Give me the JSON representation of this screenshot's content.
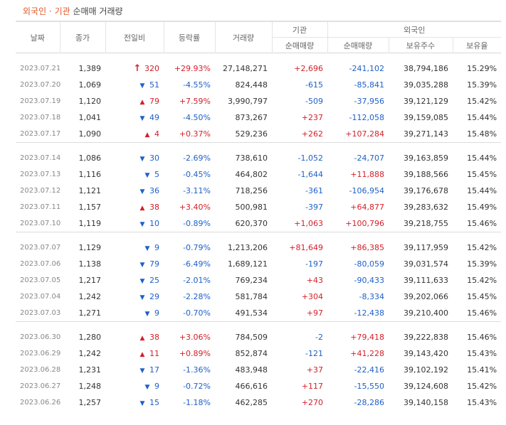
{
  "title": {
    "highlight": "외국인 · 기관",
    "rest": " 순매매 거래량"
  },
  "headers": {
    "date": "날짜",
    "close": "종가",
    "change": "전일비",
    "rate": "등락률",
    "volume": "거래량",
    "inst_group": "기관",
    "inst_net": "순매매량",
    "foreign_group": "외국인",
    "foreign_net": "순매매량",
    "foreign_holdings": "보유주수",
    "foreign_ratio": "보유율"
  },
  "colors": {
    "up": "#d3202a",
    "down": "#1e60c8",
    "accent": "#e05a2b"
  },
  "groups": [
    {
      "rows": [
        {
          "date": "2023.07.21",
          "close": "1,389",
          "dir": "limit",
          "change": "320",
          "rate": "+29.93%",
          "volume": "27,148,271",
          "inst": "+2,696",
          "foreign": "-241,102",
          "holdings": "38,794,186",
          "ratio": "15.29%"
        },
        {
          "date": "2023.07.20",
          "close": "1,069",
          "dir": "down",
          "change": "51",
          "rate": "-4.55%",
          "volume": "824,448",
          "inst": "-615",
          "foreign": "-85,841",
          "holdings": "39,035,288",
          "ratio": "15.39%"
        },
        {
          "date": "2023.07.19",
          "close": "1,120",
          "dir": "up",
          "change": "79",
          "rate": "+7.59%",
          "volume": "3,990,797",
          "inst": "-509",
          "foreign": "-37,956",
          "holdings": "39,121,129",
          "ratio": "15.42%"
        },
        {
          "date": "2023.07.18",
          "close": "1,041",
          "dir": "down",
          "change": "49",
          "rate": "-4.50%",
          "volume": "873,267",
          "inst": "+237",
          "foreign": "-112,058",
          "holdings": "39,159,085",
          "ratio": "15.44%"
        },
        {
          "date": "2023.07.17",
          "close": "1,090",
          "dir": "up",
          "change": "4",
          "rate": "+0.37%",
          "volume": "529,236",
          "inst": "+262",
          "foreign": "+107,284",
          "holdings": "39,271,143",
          "ratio": "15.48%"
        }
      ]
    },
    {
      "rows": [
        {
          "date": "2023.07.14",
          "close": "1,086",
          "dir": "down",
          "change": "30",
          "rate": "-2.69%",
          "volume": "738,610",
          "inst": "-1,052",
          "foreign": "-24,707",
          "holdings": "39,163,859",
          "ratio": "15.44%"
        },
        {
          "date": "2023.07.13",
          "close": "1,116",
          "dir": "down",
          "change": "5",
          "rate": "-0.45%",
          "volume": "464,802",
          "inst": "-1,644",
          "foreign": "+11,888",
          "holdings": "39,188,566",
          "ratio": "15.45%"
        },
        {
          "date": "2023.07.12",
          "close": "1,121",
          "dir": "down",
          "change": "36",
          "rate": "-3.11%",
          "volume": "718,256",
          "inst": "-361",
          "foreign": "-106,954",
          "holdings": "39,176,678",
          "ratio": "15.44%"
        },
        {
          "date": "2023.07.11",
          "close": "1,157",
          "dir": "up",
          "change": "38",
          "rate": "+3.40%",
          "volume": "500,981",
          "inst": "-397",
          "foreign": "+64,877",
          "holdings": "39,283,632",
          "ratio": "15.49%"
        },
        {
          "date": "2023.07.10",
          "close": "1,119",
          "dir": "down",
          "change": "10",
          "rate": "-0.89%",
          "volume": "620,370",
          "inst": "+1,063",
          "foreign": "+100,796",
          "holdings": "39,218,755",
          "ratio": "15.46%"
        }
      ]
    },
    {
      "rows": [
        {
          "date": "2023.07.07",
          "close": "1,129",
          "dir": "down",
          "change": "9",
          "rate": "-0.79%",
          "volume": "1,213,206",
          "inst": "+81,649",
          "foreign": "+86,385",
          "holdings": "39,117,959",
          "ratio": "15.42%"
        },
        {
          "date": "2023.07.06",
          "close": "1,138",
          "dir": "down",
          "change": "79",
          "rate": "-6.49%",
          "volume": "1,689,121",
          "inst": "-197",
          "foreign": "-80,059",
          "holdings": "39,031,574",
          "ratio": "15.39%"
        },
        {
          "date": "2023.07.05",
          "close": "1,217",
          "dir": "down",
          "change": "25",
          "rate": "-2.01%",
          "volume": "769,234",
          "inst": "+43",
          "foreign": "-90,433",
          "holdings": "39,111,633",
          "ratio": "15.42%"
        },
        {
          "date": "2023.07.04",
          "close": "1,242",
          "dir": "down",
          "change": "29",
          "rate": "-2.28%",
          "volume": "581,784",
          "inst": "+304",
          "foreign": "-8,334",
          "holdings": "39,202,066",
          "ratio": "15.45%"
        },
        {
          "date": "2023.07.03",
          "close": "1,271",
          "dir": "down",
          "change": "9",
          "rate": "-0.70%",
          "volume": "491,534",
          "inst": "+97",
          "foreign": "-12,438",
          "holdings": "39,210,400",
          "ratio": "15.46%"
        }
      ]
    },
    {
      "rows": [
        {
          "date": "2023.06.30",
          "close": "1,280",
          "dir": "up",
          "change": "38",
          "rate": "+3.06%",
          "volume": "784,509",
          "inst": "-2",
          "foreign": "+79,418",
          "holdings": "39,222,838",
          "ratio": "15.46%"
        },
        {
          "date": "2023.06.29",
          "close": "1,242",
          "dir": "up",
          "change": "11",
          "rate": "+0.89%",
          "volume": "852,874",
          "inst": "-121",
          "foreign": "+41,228",
          "holdings": "39,143,420",
          "ratio": "15.43%"
        },
        {
          "date": "2023.06.28",
          "close": "1,231",
          "dir": "down",
          "change": "17",
          "rate": "-1.36%",
          "volume": "483,948",
          "inst": "+37",
          "foreign": "-22,416",
          "holdings": "39,102,192",
          "ratio": "15.41%"
        },
        {
          "date": "2023.06.27",
          "close": "1,248",
          "dir": "down",
          "change": "9",
          "rate": "-0.72%",
          "volume": "466,616",
          "inst": "+117",
          "foreign": "-15,550",
          "holdings": "39,124,608",
          "ratio": "15.42%"
        },
        {
          "date": "2023.06.26",
          "close": "1,257",
          "dir": "down",
          "change": "15",
          "rate": "-1.18%",
          "volume": "462,285",
          "inst": "+270",
          "foreign": "-28,286",
          "holdings": "39,140,158",
          "ratio": "15.43%"
        }
      ]
    }
  ]
}
